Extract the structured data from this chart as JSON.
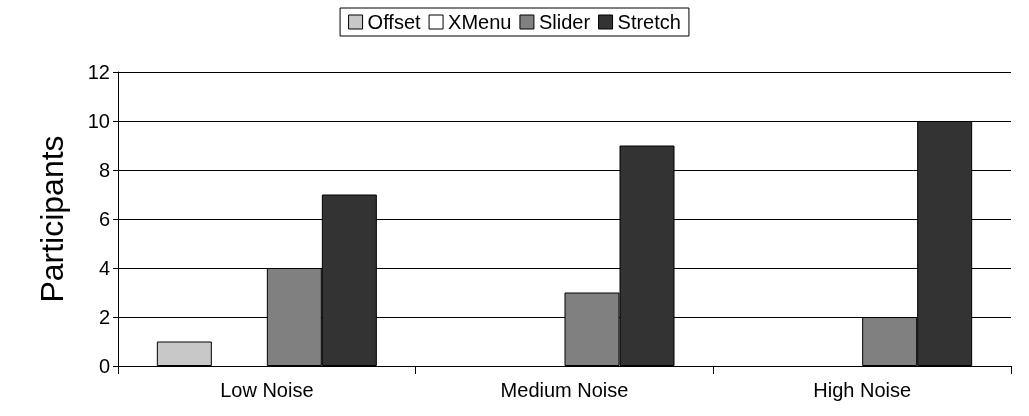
{
  "chart_data": {
    "type": "bar",
    "ylabel": "Participants",
    "categories": [
      "Low Noise",
      "Medium Noise",
      "High Noise"
    ],
    "series": [
      {
        "name": "Offset",
        "color": "#c8c8c8",
        "values": [
          1,
          0,
          0
        ]
      },
      {
        "name": "XMenu",
        "color": "#ffffff",
        "values": [
          0,
          0,
          0
        ]
      },
      {
        "name": "Slider",
        "color": "#808080",
        "values": [
          4,
          3,
          2
        ]
      },
      {
        "name": "Stretch",
        "color": "#333333",
        "values": [
          7,
          9,
          10
        ]
      }
    ],
    "ylim": [
      0,
      12
    ],
    "yticks": [
      0,
      2,
      4,
      6,
      8,
      10,
      12
    ],
    "grid": "y",
    "legend": "top"
  }
}
